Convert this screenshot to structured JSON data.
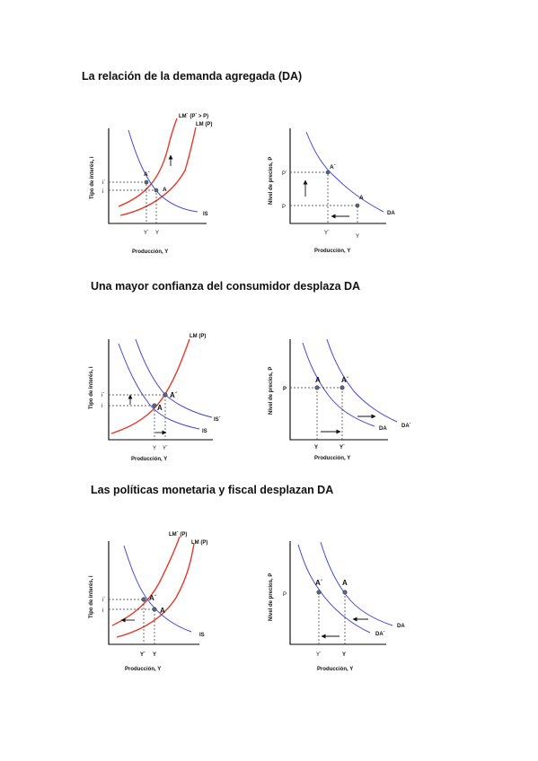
{
  "sections": [
    {
      "title": "La relación de la demanda agregada (DA)",
      "left": {
        "ylabel": "Tipo de interés, i",
        "xlabel": "Producción, Y",
        "curves": [
          "LM´ (P´ > P)",
          "LM (P)",
          "IS"
        ],
        "points": [
          "A´",
          "A"
        ],
        "yticks": [
          "i´",
          "i"
        ],
        "xticks": [
          "Y´",
          "Y"
        ]
      },
      "right": {
        "ylabel": "Nivel de precios, P",
        "xlabel": "Producción, Y",
        "curves": [
          "DA"
        ],
        "points": [
          "A´",
          "A"
        ],
        "yticks": [
          "P´",
          "P"
        ],
        "xticks": [
          "Y´",
          "Y"
        ]
      }
    },
    {
      "title": "Una mayor confianza del consumidor desplaza DA",
      "left": {
        "ylabel": "Tipo de interés, i",
        "xlabel": "Producción, Y",
        "curves": [
          "LM (P)",
          "IS´",
          "IS"
        ],
        "points": [
          "A´",
          "A"
        ],
        "yticks": [
          "i´",
          "i"
        ],
        "xticks": [
          "Y",
          "Y´"
        ]
      },
      "right": {
        "ylabel": "Nivel de precios, P",
        "xlabel": "Producción, Y",
        "curves": [
          "DA´",
          "DA"
        ],
        "points": [
          "A",
          "A´"
        ],
        "yticks": [
          "P"
        ],
        "xticks": [
          "Y",
          "Y´"
        ]
      }
    },
    {
      "title": "Las políticas monetaria y fiscal desplazan DA",
      "left": {
        "ylabel": "Tipo de interés, i",
        "xlabel": "Producción, Y",
        "curves": [
          "LM´ (P)",
          "LM (P)",
          "IS"
        ],
        "points": [
          "A´",
          "A"
        ],
        "yticks": [
          "i´",
          "i"
        ],
        "xticks": [
          "Y´",
          "Y"
        ]
      },
      "right": {
        "ylabel": "Nivel de precios, P",
        "xlabel": "Producción, Y",
        "curves": [
          "DA",
          "DA´"
        ],
        "points": [
          "A´",
          "A"
        ],
        "yticks": [
          "P"
        ],
        "xticks": [
          "Y´",
          "Y"
        ]
      }
    }
  ]
}
